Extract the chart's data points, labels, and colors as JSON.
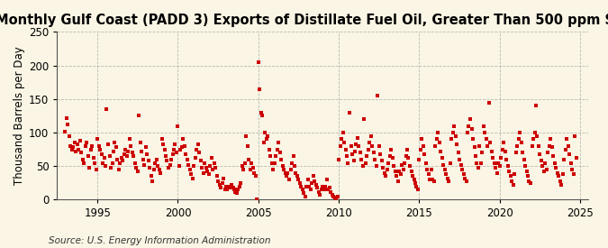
{
  "title": "Monthly Gulf Coast (PADD 3) Exports of Distillate Fuel Oil, Greater Than 500 ppm Sulfur",
  "ylabel": "Thousand Barrels per Day",
  "source": "Source: U.S. Energy Information Administration",
  "background_color": "#FAF5E4",
  "marker_color": "#CC0000",
  "xlim": [
    1992.5,
    2025.5
  ],
  "ylim": [
    0,
    250
  ],
  "xticks": [
    1995,
    2000,
    2005,
    2010,
    2015,
    2020,
    2025
  ],
  "yticks": [
    0,
    50,
    100,
    150,
    200,
    250
  ],
  "title_fontsize": 10.5,
  "label_fontsize": 8.5,
  "source_fontsize": 7.5,
  "data": [
    [
      1993.0,
      101
    ],
    [
      1993.08,
      121
    ],
    [
      1993.17,
      112
    ],
    [
      1993.25,
      95
    ],
    [
      1993.33,
      80
    ],
    [
      1993.42,
      75
    ],
    [
      1993.5,
      78
    ],
    [
      1993.58,
      85
    ],
    [
      1993.67,
      72
    ],
    [
      1993.75,
      82
    ],
    [
      1993.83,
      75
    ],
    [
      1993.92,
      88
    ],
    [
      1994.0,
      70
    ],
    [
      1994.08,
      60
    ],
    [
      1994.17,
      55
    ],
    [
      1994.25,
      80
    ],
    [
      1994.33,
      85
    ],
    [
      1994.42,
      65
    ],
    [
      1994.5,
      48
    ],
    [
      1994.58,
      75
    ],
    [
      1994.67,
      80
    ],
    [
      1994.75,
      62
    ],
    [
      1994.83,
      55
    ],
    [
      1994.92,
      45
    ],
    [
      1995.0,
      90
    ],
    [
      1995.08,
      80
    ],
    [
      1995.17,
      75
    ],
    [
      1995.25,
      68
    ],
    [
      1995.33,
      55
    ],
    [
      1995.42,
      62
    ],
    [
      1995.5,
      50
    ],
    [
      1995.58,
      135
    ],
    [
      1995.67,
      82
    ],
    [
      1995.75,
      65
    ],
    [
      1995.83,
      48
    ],
    [
      1995.92,
      55
    ],
    [
      1996.0,
      72
    ],
    [
      1996.08,
      85
    ],
    [
      1996.17,
      78
    ],
    [
      1996.25,
      60
    ],
    [
      1996.33,
      45
    ],
    [
      1996.42,
      55
    ],
    [
      1996.5,
      62
    ],
    [
      1996.58,
      58
    ],
    [
      1996.67,
      68
    ],
    [
      1996.75,
      75
    ],
    [
      1996.83,
      65
    ],
    [
      1996.92,
      72
    ],
    [
      1997.0,
      90
    ],
    [
      1997.08,
      80
    ],
    [
      1997.17,
      70
    ],
    [
      1997.25,
      65
    ],
    [
      1997.33,
      55
    ],
    [
      1997.42,
      48
    ],
    [
      1997.5,
      42
    ],
    [
      1997.58,
      125
    ],
    [
      1997.67,
      85
    ],
    [
      1997.75,
      72
    ],
    [
      1997.83,
      60
    ],
    [
      1997.92,
      52
    ],
    [
      1998.0,
      78
    ],
    [
      1998.08,
      68
    ],
    [
      1998.17,
      58
    ],
    [
      1998.25,
      48
    ],
    [
      1998.33,
      35
    ],
    [
      1998.42,
      28
    ],
    [
      1998.5,
      45
    ],
    [
      1998.58,
      55
    ],
    [
      1998.67,
      60
    ],
    [
      1998.75,
      50
    ],
    [
      1998.83,
      45
    ],
    [
      1998.92,
      40
    ],
    [
      1999.0,
      90
    ],
    [
      1999.08,
      82
    ],
    [
      1999.17,
      75
    ],
    [
      1999.25,
      65
    ],
    [
      1999.33,
      58
    ],
    [
      1999.42,
      48
    ],
    [
      1999.5,
      52
    ],
    [
      1999.58,
      60
    ],
    [
      1999.67,
      68
    ],
    [
      1999.75,
      75
    ],
    [
      1999.83,
      82
    ],
    [
      1999.92,
      70
    ],
    [
      2000.0,
      110
    ],
    [
      2000.08,
      50
    ],
    [
      2000.17,
      75
    ],
    [
      2000.25,
      78
    ],
    [
      2000.33,
      90
    ],
    [
      2000.42,
      80
    ],
    [
      2000.5,
      68
    ],
    [
      2000.58,
      60
    ],
    [
      2000.67,
      52
    ],
    [
      2000.75,
      45
    ],
    [
      2000.83,
      38
    ],
    [
      2000.92,
      32
    ],
    [
      2001.0,
      50
    ],
    [
      2001.08,
      62
    ],
    [
      2001.17,
      75
    ],
    [
      2001.25,
      82
    ],
    [
      2001.33,
      70
    ],
    [
      2001.42,
      58
    ],
    [
      2001.5,
      48
    ],
    [
      2001.58,
      40
    ],
    [
      2001.67,
      55
    ],
    [
      2001.75,
      48
    ],
    [
      2001.83,
      42
    ],
    [
      2001.92,
      38
    ],
    [
      2002.0,
      50
    ],
    [
      2002.08,
      62
    ],
    [
      2002.17,
      45
    ],
    [
      2002.25,
      55
    ],
    [
      2002.33,
      48
    ],
    [
      2002.42,
      35
    ],
    [
      2002.5,
      28
    ],
    [
      2002.58,
      22
    ],
    [
      2002.67,
      18
    ],
    [
      2002.75,
      25
    ],
    [
      2002.83,
      32
    ],
    [
      2002.92,
      15
    ],
    [
      2003.0,
      20
    ],
    [
      2003.08,
      15
    ],
    [
      2003.17,
      20
    ],
    [
      2003.25,
      18
    ],
    [
      2003.33,
      22
    ],
    [
      2003.42,
      18
    ],
    [
      2003.5,
      15
    ],
    [
      2003.58,
      12
    ],
    [
      2003.67,
      10
    ],
    [
      2003.75,
      15
    ],
    [
      2003.83,
      20
    ],
    [
      2003.92,
      25
    ],
    [
      2004.0,
      50
    ],
    [
      2004.08,
      45
    ],
    [
      2004.17,
      55
    ],
    [
      2004.25,
      95
    ],
    [
      2004.33,
      80
    ],
    [
      2004.42,
      60
    ],
    [
      2004.5,
      45
    ],
    [
      2004.58,
      55
    ],
    [
      2004.67,
      48
    ],
    [
      2004.75,
      40
    ],
    [
      2004.83,
      35
    ],
    [
      2004.92,
      1
    ],
    [
      2005.0,
      205
    ],
    [
      2005.08,
      165
    ],
    [
      2005.17,
      130
    ],
    [
      2005.25,
      125
    ],
    [
      2005.33,
      85
    ],
    [
      2005.42,
      100
    ],
    [
      2005.5,
      90
    ],
    [
      2005.58,
      95
    ],
    [
      2005.67,
      75
    ],
    [
      2005.75,
      65
    ],
    [
      2005.83,
      55
    ],
    [
      2005.92,
      45
    ],
    [
      2006.0,
      55
    ],
    [
      2006.08,
      65
    ],
    [
      2006.17,
      75
    ],
    [
      2006.25,
      85
    ],
    [
      2006.33,
      70
    ],
    [
      2006.42,
      60
    ],
    [
      2006.5,
      50
    ],
    [
      2006.58,
      45
    ],
    [
      2006.67,
      40
    ],
    [
      2006.75,
      35
    ],
    [
      2006.83,
      40
    ],
    [
      2006.92,
      30
    ],
    [
      2007.0,
      45
    ],
    [
      2007.08,
      55
    ],
    [
      2007.17,
      65
    ],
    [
      2007.25,
      50
    ],
    [
      2007.33,
      40
    ],
    [
      2007.42,
      35
    ],
    [
      2007.5,
      30
    ],
    [
      2007.58,
      25
    ],
    [
      2007.67,
      20
    ],
    [
      2007.75,
      15
    ],
    [
      2007.83,
      10
    ],
    [
      2007.92,
      5
    ],
    [
      2008.0,
      20
    ],
    [
      2008.08,
      30
    ],
    [
      2008.17,
      20
    ],
    [
      2008.25,
      15
    ],
    [
      2008.33,
      25
    ],
    [
      2008.42,
      35
    ],
    [
      2008.5,
      28
    ],
    [
      2008.58,
      22
    ],
    [
      2008.67,
      18
    ],
    [
      2008.75,
      12
    ],
    [
      2008.83,
      8
    ],
    [
      2008.92,
      15
    ],
    [
      2009.0,
      20
    ],
    [
      2009.08,
      15
    ],
    [
      2009.17,
      20
    ],
    [
      2009.25,
      30
    ],
    [
      2009.33,
      15
    ],
    [
      2009.42,
      18
    ],
    [
      2009.5,
      12
    ],
    [
      2009.58,
      8
    ],
    [
      2009.67,
      5
    ],
    [
      2009.75,
      3
    ],
    [
      2009.83,
      1
    ],
    [
      2009.92,
      5
    ],
    [
      2010.0,
      60
    ],
    [
      2010.08,
      80
    ],
    [
      2010.17,
      90
    ],
    [
      2010.25,
      100
    ],
    [
      2010.33,
      85
    ],
    [
      2010.42,
      75
    ],
    [
      2010.5,
      65
    ],
    [
      2010.58,
      55
    ],
    [
      2010.67,
      130
    ],
    [
      2010.75,
      80
    ],
    [
      2010.83,
      68
    ],
    [
      2010.92,
      58
    ],
    [
      2011.0,
      72
    ],
    [
      2011.08,
      82
    ],
    [
      2011.17,
      92
    ],
    [
      2011.25,
      80
    ],
    [
      2011.33,
      70
    ],
    [
      2011.42,
      60
    ],
    [
      2011.5,
      50
    ],
    [
      2011.58,
      120
    ],
    [
      2011.67,
      55
    ],
    [
      2011.75,
      65
    ],
    [
      2011.83,
      75
    ],
    [
      2011.92,
      85
    ],
    [
      2012.0,
      95
    ],
    [
      2012.08,
      80
    ],
    [
      2012.17,
      70
    ],
    [
      2012.25,
      60
    ],
    [
      2012.33,
      50
    ],
    [
      2012.42,
      155
    ],
    [
      2012.5,
      80
    ],
    [
      2012.58,
      68
    ],
    [
      2012.67,
      58
    ],
    [
      2012.75,
      48
    ],
    [
      2012.83,
      40
    ],
    [
      2012.92,
      35
    ],
    [
      2013.0,
      45
    ],
    [
      2013.08,
      55
    ],
    [
      2013.17,
      65
    ],
    [
      2013.25,
      75
    ],
    [
      2013.33,
      62
    ],
    [
      2013.42,
      50
    ],
    [
      2013.5,
      42
    ],
    [
      2013.58,
      35
    ],
    [
      2013.67,
      28
    ],
    [
      2013.75,
      42
    ],
    [
      2013.83,
      38
    ],
    [
      2013.92,
      52
    ],
    [
      2014.0,
      45
    ],
    [
      2014.08,
      55
    ],
    [
      2014.17,
      65
    ],
    [
      2014.25,
      75
    ],
    [
      2014.33,
      62
    ],
    [
      2014.42,
      50
    ],
    [
      2014.5,
      42
    ],
    [
      2014.58,
      35
    ],
    [
      2014.67,
      30
    ],
    [
      2014.75,
      25
    ],
    [
      2014.83,
      20
    ],
    [
      2014.92,
      15
    ],
    [
      2015.0,
      60
    ],
    [
      2015.08,
      75
    ],
    [
      2015.17,
      90
    ],
    [
      2015.25,
      80
    ],
    [
      2015.33,
      68
    ],
    [
      2015.42,
      55
    ],
    [
      2015.5,
      45
    ],
    [
      2015.58,
      38
    ],
    [
      2015.67,
      30
    ],
    [
      2015.75,
      45
    ],
    [
      2015.83,
      30
    ],
    [
      2015.92,
      28
    ],
    [
      2016.0,
      80
    ],
    [
      2016.08,
      90
    ],
    [
      2016.17,
      100
    ],
    [
      2016.25,
      85
    ],
    [
      2016.33,
      72
    ],
    [
      2016.42,
      62
    ],
    [
      2016.5,
      52
    ],
    [
      2016.58,
      45
    ],
    [
      2016.67,
      38
    ],
    [
      2016.75,
      32
    ],
    [
      2016.83,
      28
    ],
    [
      2016.92,
      55
    ],
    [
      2017.0,
      90
    ],
    [
      2017.08,
      100
    ],
    [
      2017.17,
      110
    ],
    [
      2017.25,
      95
    ],
    [
      2017.33,
      82
    ],
    [
      2017.42,
      70
    ],
    [
      2017.5,
      60
    ],
    [
      2017.58,
      52
    ],
    [
      2017.67,
      45
    ],
    [
      2017.75,
      38
    ],
    [
      2017.83,
      32
    ],
    [
      2017.92,
      28
    ],
    [
      2018.0,
      100
    ],
    [
      2018.08,
      110
    ],
    [
      2018.17,
      120
    ],
    [
      2018.25,
      105
    ],
    [
      2018.33,
      90
    ],
    [
      2018.42,
      78
    ],
    [
      2018.5,
      65
    ],
    [
      2018.58,
      55
    ],
    [
      2018.67,
      48
    ],
    [
      2018.75,
      80
    ],
    [
      2018.83,
      55
    ],
    [
      2018.92,
      70
    ],
    [
      2019.0,
      110
    ],
    [
      2019.08,
      100
    ],
    [
      2019.17,
      90
    ],
    [
      2019.25,
      80
    ],
    [
      2019.33,
      145
    ],
    [
      2019.42,
      85
    ],
    [
      2019.5,
      72
    ],
    [
      2019.58,
      62
    ],
    [
      2019.67,
      55
    ],
    [
      2019.75,
      48
    ],
    [
      2019.83,
      40
    ],
    [
      2019.92,
      55
    ],
    [
      2020.0,
      50
    ],
    [
      2020.08,
      62
    ],
    [
      2020.17,
      75
    ],
    [
      2020.25,
      85
    ],
    [
      2020.33,
      72
    ],
    [
      2020.42,
      60
    ],
    [
      2020.5,
      50
    ],
    [
      2020.58,
      42
    ],
    [
      2020.67,
      35
    ],
    [
      2020.75,
      28
    ],
    [
      2020.83,
      22
    ],
    [
      2020.92,
      38
    ],
    [
      2021.0,
      70
    ],
    [
      2021.08,
      80
    ],
    [
      2021.17,
      90
    ],
    [
      2021.25,
      100
    ],
    [
      2021.33,
      85
    ],
    [
      2021.42,
      70
    ],
    [
      2021.5,
      60
    ],
    [
      2021.58,
      50
    ],
    [
      2021.67,
      42
    ],
    [
      2021.75,
      35
    ],
    [
      2021.83,
      28
    ],
    [
      2021.92,
      25
    ],
    [
      2022.0,
      80
    ],
    [
      2022.08,
      90
    ],
    [
      2022.17,
      100
    ],
    [
      2022.25,
      140
    ],
    [
      2022.33,
      95
    ],
    [
      2022.42,
      80
    ],
    [
      2022.5,
      68
    ],
    [
      2022.58,
      58
    ],
    [
      2022.67,
      50
    ],
    [
      2022.75,
      42
    ],
    [
      2022.83,
      55
    ],
    [
      2022.92,
      45
    ],
    [
      2023.0,
      70
    ],
    [
      2023.08,
      80
    ],
    [
      2023.17,
      90
    ],
    [
      2023.25,
      78
    ],
    [
      2023.33,
      65
    ],
    [
      2023.42,
      55
    ],
    [
      2023.5,
      48
    ],
    [
      2023.58,
      40
    ],
    [
      2023.67,
      35
    ],
    [
      2023.75,
      28
    ],
    [
      2023.83,
      22
    ],
    [
      2023.92,
      38
    ],
    [
      2024.0,
      60
    ],
    [
      2024.08,
      75
    ],
    [
      2024.17,
      90
    ],
    [
      2024.25,
      80
    ],
    [
      2024.33,
      68
    ],
    [
      2024.42,
      55
    ],
    [
      2024.5,
      45
    ],
    [
      2024.58,
      38
    ],
    [
      2024.67,
      95
    ],
    [
      2024.75,
      62
    ]
  ]
}
